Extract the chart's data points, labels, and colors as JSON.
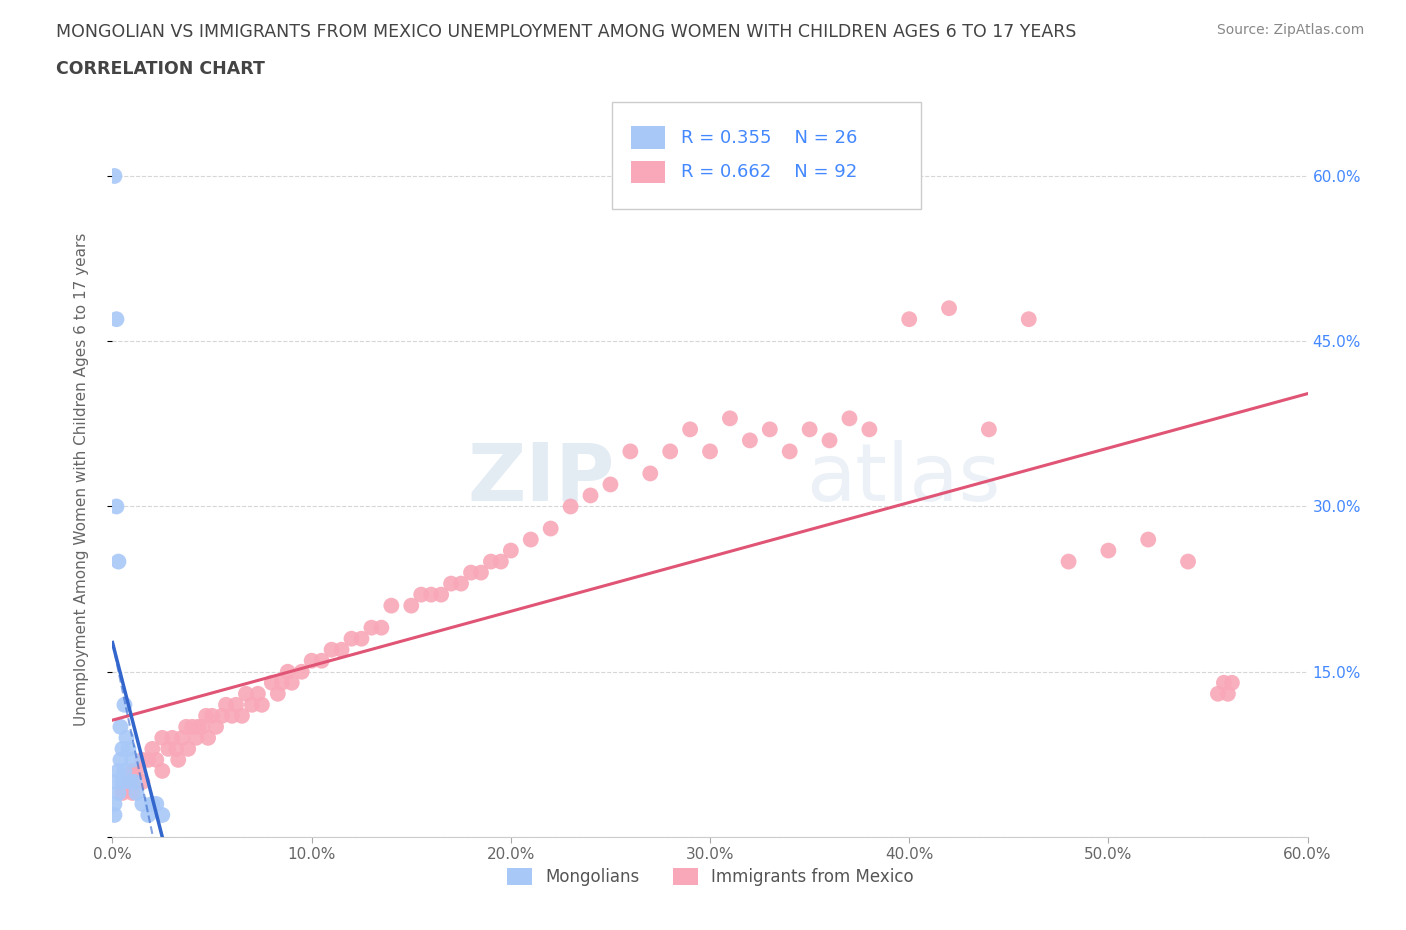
{
  "title_line1": "MONGOLIAN VS IMMIGRANTS FROM MEXICO UNEMPLOYMENT AMONG WOMEN WITH CHILDREN AGES 6 TO 17 YEARS",
  "title_line2": "CORRELATION CHART",
  "source_text": "Source: ZipAtlas.com",
  "ylabel": "Unemployment Among Women with Children Ages 6 to 17 years",
  "xlim": [
    0.0,
    0.6
  ],
  "ylim": [
    0.0,
    0.65
  ],
  "xticks": [
    0.0,
    0.1,
    0.2,
    0.3,
    0.4,
    0.5,
    0.6
  ],
  "xticklabels": [
    "0.0%",
    "10.0%",
    "20.0%",
    "30.0%",
    "40.0%",
    "50.0%",
    "60.0%"
  ],
  "yticks": [
    0.0,
    0.15,
    0.3,
    0.45,
    0.6
  ],
  "yticklabels": [
    "",
    "15.0%",
    "30.0%",
    "45.0%",
    "60.0%"
  ],
  "mongolian_color": "#a8c8f8",
  "mexican_color": "#f8a8b8",
  "mongolian_line_color": "#3366cc",
  "mexican_line_color": "#e05575",
  "mongolian_R": 0.355,
  "mongolian_N": 26,
  "mexican_R": 0.662,
  "mexican_N": 92,
  "background_color": "#ffffff",
  "grid_color": "#cccccc",
  "watermark_zip": "ZIP",
  "watermark_atlas": "atlas",
  "legend_label_mongolian": "Mongolians",
  "legend_label_mexican": "Immigrants from Mexico",
  "mongolian_scatter_x": [
    0.001,
    0.001,
    0.001,
    0.002,
    0.002,
    0.002,
    0.003,
    0.003,
    0.003,
    0.004,
    0.004,
    0.005,
    0.005,
    0.006,
    0.006,
    0.007,
    0.008,
    0.009,
    0.01,
    0.011,
    0.012,
    0.015,
    0.018,
    0.02,
    0.022,
    0.025
  ],
  "mongolian_scatter_y": [
    0.6,
    0.02,
    0.03,
    0.47,
    0.3,
    0.05,
    0.25,
    0.06,
    0.04,
    0.1,
    0.07,
    0.08,
    0.05,
    0.12,
    0.06,
    0.09,
    0.08,
    0.05,
    0.07,
    0.05,
    0.04,
    0.03,
    0.02,
    0.03,
    0.03,
    0.02
  ],
  "mexican_scatter_x": [
    0.005,
    0.008,
    0.01,
    0.01,
    0.012,
    0.015,
    0.015,
    0.018,
    0.02,
    0.022,
    0.025,
    0.025,
    0.028,
    0.03,
    0.032,
    0.033,
    0.035,
    0.037,
    0.038,
    0.04,
    0.042,
    0.043,
    0.045,
    0.047,
    0.048,
    0.05,
    0.052,
    0.055,
    0.057,
    0.06,
    0.062,
    0.065,
    0.067,
    0.07,
    0.073,
    0.075,
    0.08,
    0.083,
    0.085,
    0.088,
    0.09,
    0.095,
    0.1,
    0.105,
    0.11,
    0.115,
    0.12,
    0.125,
    0.13,
    0.135,
    0.14,
    0.15,
    0.155,
    0.16,
    0.165,
    0.17,
    0.175,
    0.18,
    0.185,
    0.19,
    0.195,
    0.2,
    0.21,
    0.22,
    0.23,
    0.24,
    0.25,
    0.26,
    0.27,
    0.28,
    0.29,
    0.3,
    0.31,
    0.32,
    0.33,
    0.34,
    0.35,
    0.36,
    0.37,
    0.38,
    0.4,
    0.42,
    0.44,
    0.46,
    0.48,
    0.5,
    0.52,
    0.54,
    0.555,
    0.558,
    0.56,
    0.562
  ],
  "mexican_scatter_y": [
    0.04,
    0.05,
    0.06,
    0.04,
    0.06,
    0.07,
    0.05,
    0.07,
    0.08,
    0.07,
    0.09,
    0.06,
    0.08,
    0.09,
    0.08,
    0.07,
    0.09,
    0.1,
    0.08,
    0.1,
    0.09,
    0.1,
    0.1,
    0.11,
    0.09,
    0.11,
    0.1,
    0.11,
    0.12,
    0.11,
    0.12,
    0.11,
    0.13,
    0.12,
    0.13,
    0.12,
    0.14,
    0.13,
    0.14,
    0.15,
    0.14,
    0.15,
    0.16,
    0.16,
    0.17,
    0.17,
    0.18,
    0.18,
    0.19,
    0.19,
    0.21,
    0.21,
    0.22,
    0.22,
    0.22,
    0.23,
    0.23,
    0.24,
    0.24,
    0.25,
    0.25,
    0.26,
    0.27,
    0.28,
    0.3,
    0.31,
    0.32,
    0.35,
    0.33,
    0.35,
    0.37,
    0.35,
    0.38,
    0.36,
    0.37,
    0.35,
    0.37,
    0.36,
    0.38,
    0.37,
    0.47,
    0.48,
    0.37,
    0.47,
    0.25,
    0.26,
    0.27,
    0.25,
    0.13,
    0.14,
    0.13,
    0.14
  ]
}
